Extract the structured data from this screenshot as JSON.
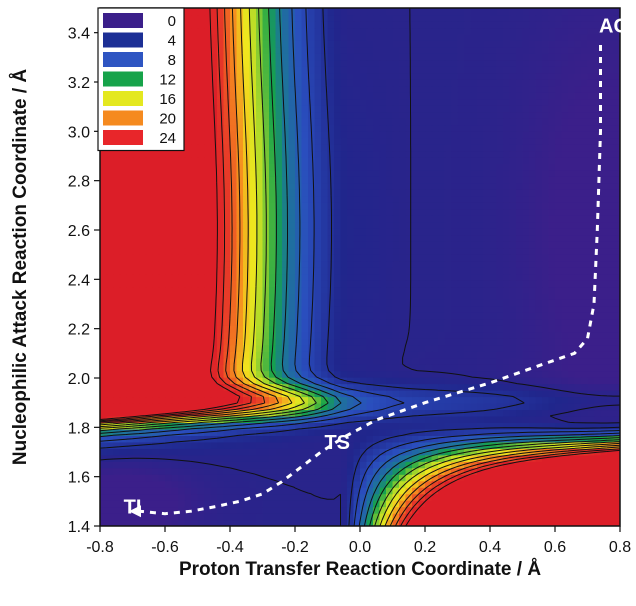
{
  "chart_data": {
    "type": "heatmap",
    "title": "",
    "xlabel": "Proton Transfer Reaction Coordinate / Å",
    "ylabel": "Nucleophilic Attack Reaction Coordinate / Å",
    "xlim": [
      -0.8,
      0.8
    ],
    "ylim": [
      1.4,
      3.5
    ],
    "x_ticks": [
      "-0.8",
      "-0.6",
      "-0.4",
      "-0.2",
      "0.0",
      "0.2",
      "0.4",
      "0.6",
      "0.8"
    ],
    "y_ticks": [
      "1.4",
      "1.6",
      "1.8",
      "2.0",
      "2.2",
      "2.4",
      "2.6",
      "2.8",
      "3.0",
      "3.2",
      "3.4"
    ],
    "legend": {
      "placement": "top-left",
      "levels": [
        {
          "label": "0",
          "color": "#3b1f8a"
        },
        {
          "label": "4",
          "color": "#1c2f95"
        },
        {
          "label": "8",
          "color": "#2e55c2"
        },
        {
          "label": "12",
          "color": "#16a34a"
        },
        {
          "label": "16",
          "color": "#e4e820"
        },
        {
          "label": "20",
          "color": "#f58a1f"
        },
        {
          "label": "24",
          "color": "#e8262a"
        }
      ]
    },
    "points": [
      {
        "label": "AC",
        "x": 0.78,
        "y": 3.43
      },
      {
        "label": "TS",
        "x": -0.07,
        "y": 1.74
      },
      {
        "label": "TI",
        "x": -0.7,
        "y": 1.48
      }
    ],
    "path": {
      "style": "dashed",
      "color": "#ffffff",
      "x": [
        0.74,
        0.74,
        0.73,
        0.72,
        0.7,
        0.66,
        0.55,
        0.4,
        0.2,
        0.05,
        -0.05,
        -0.12,
        -0.18,
        -0.24,
        -0.3,
        -0.37,
        -0.44,
        -0.52,
        -0.6,
        -0.68
      ],
      "y": [
        3.35,
        3.0,
        2.6,
        2.3,
        2.16,
        2.1,
        2.05,
        1.98,
        1.9,
        1.83,
        1.76,
        1.7,
        1.64,
        1.58,
        1.53,
        1.5,
        1.48,
        1.46,
        1.45,
        1.46
      ]
    },
    "contour_levels": [
      2,
      4,
      6,
      8,
      10,
      12,
      14,
      16,
      18,
      20,
      22,
      24,
      26
    ],
    "grid": false
  }
}
